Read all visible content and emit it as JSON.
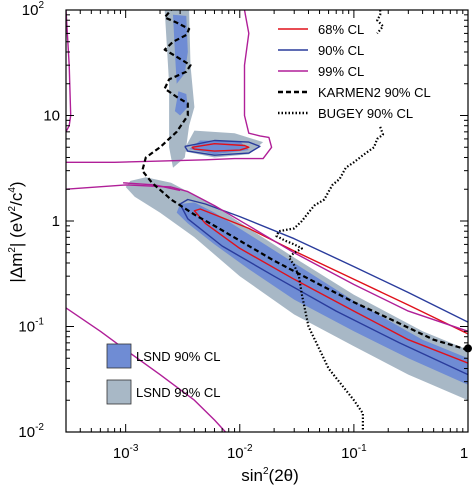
{
  "chart_data": {
    "type": "line",
    "xscale": "log",
    "yscale": "log",
    "xlim": [
      0.0003,
      1
    ],
    "ylim": [
      0.01,
      100
    ],
    "xlabel": {
      "base": "sin",
      "sup": "2",
      "rest": "(2θ)"
    },
    "ylabel": {
      "pre": "|Δm",
      "sup1": "2",
      "mid": "| (eV",
      "sup2": "2",
      "slash": "/c",
      "sup3": "4",
      "post": ")"
    },
    "x_ticks": [
      {
        "value": 0.001,
        "base": "10",
        "exp": "-3"
      },
      {
        "value": 0.01,
        "base": "10",
        "exp": "-2"
      },
      {
        "value": 0.1,
        "base": "10",
        "exp": "-1"
      },
      {
        "value": 1,
        "base": "1",
        "exp": ""
      }
    ],
    "y_ticks": [
      {
        "value": 0.01,
        "base": "10",
        "exp": "-2"
      },
      {
        "value": 0.1,
        "base": "10",
        "exp": "-1"
      },
      {
        "value": 1,
        "base": "1",
        "exp": ""
      },
      {
        "value": 10,
        "base": "10",
        "exp": ""
      },
      {
        "value": 100,
        "base": "10",
        "exp": "2"
      }
    ],
    "legend_lines": [
      {
        "label": "68% CL",
        "color": "#e0101a",
        "style": "solid"
      },
      {
        "label": "90% CL",
        "color": "#2a3c9c",
        "style": "solid"
      },
      {
        "label": "99% CL",
        "color": "#b01f98",
        "style": "solid"
      },
      {
        "label": "KARMEN2 90% CL",
        "color": "#000000",
        "style": "dashed"
      },
      {
        "label": "BUGEY 90% CL",
        "color": "#000000",
        "style": "dotted"
      }
    ],
    "legend_regions": [
      {
        "label": "LSND 90% CL",
        "color": "#6f8cd4"
      },
      {
        "label": "LSND 99% CL",
        "color": "#a8b8c6"
      }
    ],
    "regions": [
      {
        "name": "LSND 99% CL",
        "color": "#a8b8c6",
        "points": [
          [
            0.0011,
            2.4
          ],
          [
            0.0015,
            2.6
          ],
          [
            0.0025,
            2.3
          ],
          [
            0.0035,
            1.9
          ],
          [
            0.006,
            1.4
          ],
          [
            0.012,
            0.85
          ],
          [
            0.03,
            0.45
          ],
          [
            0.1,
            0.2
          ],
          [
            0.4,
            0.09
          ],
          [
            1,
            0.06
          ],
          [
            1,
            0.02
          ],
          [
            0.3,
            0.035
          ],
          [
            0.1,
            0.065
          ],
          [
            0.03,
            0.13
          ],
          [
            0.01,
            0.3
          ],
          [
            0.004,
            0.7
          ],
          [
            0.002,
            1.2
          ],
          [
            0.0012,
            1.7
          ],
          [
            0.001,
            2.1
          ]
        ]
      },
      {
        "name": "LSND 99% CL",
        "color": "#a8b8c6",
        "points": [
          [
            0.0022,
            100
          ],
          [
            0.0036,
            100
          ],
          [
            0.0037,
            30
          ],
          [
            0.004,
            12
          ],
          [
            0.0036,
            8
          ],
          [
            0.0033,
            4
          ],
          [
            0.0026,
            3.2
          ],
          [
            0.0024,
            5
          ],
          [
            0.0024,
            20
          ]
        ]
      },
      {
        "name": "LSND 99% CL",
        "color": "#a8b8c6",
        "points": [
          [
            0.004,
            7.2
          ],
          [
            0.009,
            6.8
          ],
          [
            0.016,
            5.6
          ],
          [
            0.012,
            4.3
          ],
          [
            0.006,
            4.0
          ],
          [
            0.0032,
            4.6
          ]
        ]
      },
      {
        "name": "LSND 90% CL",
        "color": "#6f8cd4",
        "points": [
          [
            0.003,
            1.45
          ],
          [
            0.004,
            1.5
          ],
          [
            0.006,
            1.2
          ],
          [
            0.012,
            0.75
          ],
          [
            0.03,
            0.4
          ],
          [
            0.1,
            0.175
          ],
          [
            0.4,
            0.075
          ],
          [
            1,
            0.05
          ],
          [
            1,
            0.028
          ],
          [
            0.3,
            0.05
          ],
          [
            0.1,
            0.09
          ],
          [
            0.03,
            0.18
          ],
          [
            0.012,
            0.35
          ],
          [
            0.006,
            0.6
          ],
          [
            0.0035,
            0.95
          ],
          [
            0.0028,
            1.2
          ]
        ]
      },
      {
        "name": "LSND 90% CL",
        "color": "#6f8cd4",
        "points": [
          [
            0.0026,
            90
          ],
          [
            0.0034,
            88
          ],
          [
            0.0035,
            40
          ],
          [
            0.0033,
            25
          ],
          [
            0.0028,
            20
          ],
          [
            0.0027,
            40
          ]
        ]
      },
      {
        "name": "LSND 90% CL",
        "color": "#6f8cd4",
        "points": [
          [
            0.0029,
            17
          ],
          [
            0.0034,
            16
          ],
          [
            0.0035,
            12
          ],
          [
            0.003,
            10
          ],
          [
            0.0027,
            11
          ]
        ]
      },
      {
        "name": "LSND 90% CL",
        "color": "#6f8cd4",
        "points": [
          [
            0.0045,
            5.8
          ],
          [
            0.01,
            5.7
          ],
          [
            0.012,
            4.7
          ],
          [
            0.006,
            4.3
          ],
          [
            0.0036,
            4.8
          ]
        ]
      }
    ],
    "series": [
      {
        "name": "68% CL",
        "color": "#e0101a",
        "style": "solid",
        "paths": [
          [
            [
              1,
              0.085
            ],
            [
              0.3,
              0.16
            ],
            [
              0.1,
              0.28
            ],
            [
              0.03,
              0.52
            ],
            [
              0.012,
              0.85
            ],
            [
              0.006,
              1.15
            ],
            [
              0.0045,
              1.3
            ],
            [
              0.004,
              1.25
            ],
            [
              0.005,
              0.95
            ],
            [
              0.01,
              0.55
            ],
            [
              0.03,
              0.28
            ],
            [
              0.1,
              0.14
            ],
            [
              0.3,
              0.075
            ],
            [
              1,
              0.045
            ]
          ],
          [
            [
              0.0038,
              5.0
            ],
            [
              0.006,
              5.4
            ],
            [
              0.011,
              5.2
            ],
            [
              0.012,
              5.0
            ],
            [
              0.01,
              4.7
            ],
            [
              0.006,
              4.6
            ],
            [
              0.004,
              4.8
            ],
            [
              0.0038,
              5.0
            ]
          ]
        ]
      },
      {
        "name": "90% CL",
        "color": "#2a3c9c",
        "style": "solid",
        "paths": [
          [
            [
              1,
              0.11
            ],
            [
              0.3,
              0.21
            ],
            [
              0.1,
              0.37
            ],
            [
              0.03,
              0.68
            ],
            [
              0.01,
              1.1
            ],
            [
              0.005,
              1.45
            ],
            [
              0.0035,
              1.6
            ],
            [
              0.003,
              1.45
            ],
            [
              0.0035,
              1.05
            ],
            [
              0.007,
              0.58
            ],
            [
              0.02,
              0.3
            ],
            [
              0.07,
              0.14
            ],
            [
              0.25,
              0.07
            ],
            [
              1,
              0.035
            ]
          ],
          [
            [
              0.0033,
              5.1
            ],
            [
              0.006,
              5.8
            ],
            [
              0.012,
              5.6
            ],
            [
              0.015,
              5.1
            ],
            [
              0.012,
              4.4
            ],
            [
              0.006,
              4.2
            ],
            [
              0.0035,
              4.6
            ],
            [
              0.0033,
              5.1
            ]
          ]
        ]
      },
      {
        "name": "99% CL",
        "color": "#b01f98",
        "style": "solid",
        "paths": [
          [
            [
              0.0003,
              3.6
            ],
            [
              0.0008,
              3.6
            ],
            [
              0.002,
              3.7
            ],
            [
              0.005,
              3.8
            ],
            [
              0.009,
              3.9
            ],
            [
              0.016,
              3.9
            ],
            [
              0.019,
              5.0
            ],
            [
              0.018,
              6.2
            ],
            [
              0.015,
              6.4
            ],
            [
              0.012,
              6.8
            ],
            [
              0.011,
              10
            ],
            [
              0.011,
              30
            ],
            [
              0.012,
              60
            ],
            [
              0.011,
              100
            ]
          ],
          [
            [
              0.0003,
              2.0
            ],
            [
              0.001,
              2.2
            ],
            [
              0.0025,
              2.1
            ],
            [
              0.0035,
              1.9
            ],
            [
              0.006,
              1.4
            ],
            [
              0.012,
              0.9
            ],
            [
              0.03,
              0.5
            ],
            [
              0.1,
              0.25
            ],
            [
              0.3,
              0.14
            ],
            [
              1,
              0.09
            ]
          ],
          [
            [
              0.0003,
              0.15
            ],
            [
              0.0006,
              0.09
            ],
            [
              0.001,
              0.06
            ],
            [
              0.002,
              0.035
            ],
            [
              0.004,
              0.02
            ],
            [
              0.006,
              0.013
            ],
            [
              0.0075,
              0.01
            ]
          ],
          [
            [
              0.0003,
              100
            ],
            [
              0.00032,
              30
            ],
            [
              0.00033,
              10
            ],
            [
              0.00032,
              8
            ],
            [
              0.0003,
              7
            ]
          ],
          [
            [
              0.00095,
              2.3
            ],
            [
              0.0018,
              2.2
            ],
            [
              0.003,
              1.95
            ]
          ]
        ]
      },
      {
        "name": "KARMEN2 90% CL",
        "color": "#000000",
        "style": "dashed",
        "paths": [
          [
            [
              1,
              0.06
            ],
            [
              0.5,
              0.075
            ],
            [
              0.2,
              0.12
            ],
            [
              0.1,
              0.17
            ],
            [
              0.05,
              0.25
            ],
            [
              0.02,
              0.42
            ],
            [
              0.01,
              0.65
            ],
            [
              0.006,
              0.9
            ],
            [
              0.004,
              1.15
            ],
            [
              0.0025,
              1.6
            ],
            [
              0.0017,
              2.3
            ],
            [
              0.0014,
              3
            ],
            [
              0.0015,
              4
            ],
            [
              0.002,
              5
            ],
            [
              0.0028,
              7
            ],
            [
              0.0035,
              10
            ],
            [
              0.0035,
              13
            ],
            [
              0.0028,
              15
            ],
            [
              0.0022,
              18
            ],
            [
              0.0024,
              22
            ],
            [
              0.0034,
              26
            ],
            [
              0.0037,
              30
            ],
            [
              0.0028,
              36
            ],
            [
              0.0022,
              42
            ],
            [
              0.0026,
              50
            ],
            [
              0.0034,
              58
            ],
            [
              0.0036,
              66
            ],
            [
              0.0028,
              76
            ],
            [
              0.0022,
              85
            ],
            [
              0.0025,
              100
            ]
          ]
        ]
      },
      {
        "name": "BUGEY 90% CL",
        "color": "#000000",
        "style": "dotted",
        "paths": [
          [
            [
              0.17,
              100
            ],
            [
              0.17,
              90
            ],
            [
              0.16,
              80
            ],
            [
              0.18,
              70
            ],
            [
              0.16,
              60
            ]
          ],
          [
            [
              0.17,
              7.8
            ],
            [
              0.18,
              6.6
            ],
            [
              0.16,
              6
            ],
            [
              0.15,
              5
            ],
            [
              0.12,
              4.2
            ],
            [
              0.1,
              3.6
            ],
            [
              0.085,
              3.2
            ],
            [
              0.075,
              2.5
            ],
            [
              0.065,
              2.2
            ],
            [
              0.06,
              1.9
            ],
            [
              0.055,
              1.6
            ],
            [
              0.045,
              1.4
            ],
            [
              0.04,
              1.2
            ],
            [
              0.035,
              1.0
            ],
            [
              0.03,
              0.85
            ],
            [
              0.022,
              0.8
            ],
            [
              0.021,
              0.72
            ],
            [
              0.025,
              0.65
            ],
            [
              0.03,
              0.6
            ],
            [
              0.035,
              0.55
            ],
            [
              0.03,
              0.5
            ],
            [
              0.027,
              0.45
            ],
            [
              0.03,
              0.38
            ],
            [
              0.033,
              0.3
            ],
            [
              0.035,
              0.2
            ],
            [
              0.04,
              0.1
            ],
            [
              0.06,
              0.04
            ],
            [
              0.1,
              0.02
            ],
            [
              0.12,
              0.015
            ],
            [
              0.12,
              0.01
            ]
          ]
        ]
      }
    ],
    "marker": {
      "x": 1,
      "y": 0.062,
      "color": "#000000"
    }
  }
}
